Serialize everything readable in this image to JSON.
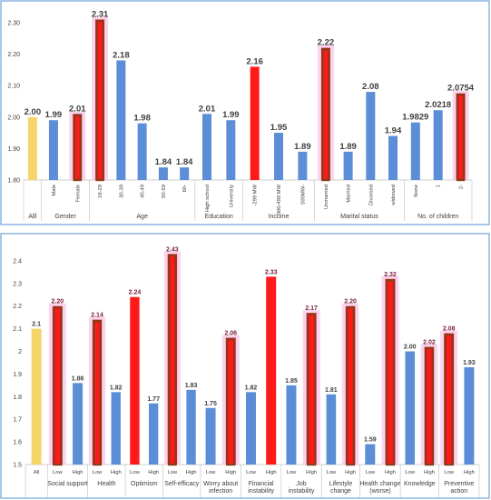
{
  "colors": {
    "avg": "#f5d46a",
    "low": "#5b8ed6",
    "high": "#ff1a1a",
    "highlight_outline": "#8b3a1a",
    "highlight_glow": "#f6c7ea",
    "frame": "#6fa3d8"
  },
  "chart_data": [
    {
      "type": "bar",
      "ylim": [
        1.8,
        2.32
      ],
      "yticks": [
        "1.80",
        "1.90",
        "2.00",
        "2.10",
        "2.20",
        "2.30"
      ],
      "groups": [
        {
          "label": "Alll",
          "bars": [
            {
              "category": "",
              "value": 2.0,
              "label": "2.00",
              "color": "avg"
            }
          ]
        },
        {
          "label": "Gender",
          "bars": [
            {
              "category": "Male",
              "value": 1.99,
              "label": "1.99",
              "color": "low"
            },
            {
              "category": "Female",
              "value": 2.01,
              "label": "2.01",
              "color": "high",
              "highlight": true
            }
          ]
        },
        {
          "label": "Age",
          "bars": [
            {
              "category": "18-29",
              "value": 2.31,
              "label": "2.31",
              "color": "high",
              "highlight": true
            },
            {
              "category": "30-39",
              "value": 2.18,
              "label": "2.18",
              "color": "low"
            },
            {
              "category": "40-49",
              "value": 1.98,
              "label": "1.98",
              "color": "low"
            },
            {
              "category": "50-59",
              "value": 1.84,
              "label": "1.84",
              "color": "low"
            },
            {
              "category": "60-",
              "value": 1.84,
              "label": "1.84",
              "color": "low"
            }
          ]
        },
        {
          "label": "Education",
          "bars": [
            {
              "category": "High school",
              "value": 2.01,
              "label": "2.01",
              "color": "low"
            },
            {
              "category": "University",
              "value": 1.99,
              "label": "1.99",
              "color": "low"
            }
          ]
        },
        {
          "label": "Income",
          "bars": [
            {
              "category": "-299 MW",
              "value": 2.16,
              "label": "2.16",
              "color": "high"
            },
            {
              "category": "300-499 MW",
              "value": 1.95,
              "label": "1.95",
              "color": "low"
            },
            {
              "category": "500MW-",
              "value": 1.89,
              "label": "1.89",
              "color": "low"
            }
          ]
        },
        {
          "label": "Marital status",
          "bars": [
            {
              "category": "Unmarried",
              "value": 2.22,
              "label": "2.22",
              "color": "high",
              "highlight": true
            },
            {
              "category": "Married",
              "value": 1.89,
              "label": "1.89",
              "color": "low"
            },
            {
              "category": "Divorsed",
              "value": 2.08,
              "label": "2.08",
              "color": "low"
            },
            {
              "category": "widowed",
              "value": 1.94,
              "label": "1.94",
              "color": "low"
            }
          ]
        },
        {
          "label": "No. of children",
          "bars": [
            {
              "category": "None",
              "value": 1.9829,
              "label": "1.9829",
              "color": "low"
            },
            {
              "category": "1",
              "value": 2.0218,
              "label": "2.0218",
              "color": "low"
            },
            {
              "category": "2-",
              "value": 2.0754,
              "label": "2.0754",
              "color": "high",
              "highlight": true
            }
          ]
        }
      ]
    },
    {
      "type": "bar",
      "ylim": [
        1.5,
        2.5
      ],
      "yticks": [
        "1.5",
        "1.6",
        "1.7",
        "1.8",
        "1.9",
        "2",
        "2.1",
        "2.2",
        "2.3",
        "2.4"
      ],
      "groups": [
        {
          "label": "",
          "bars": [
            {
              "category": "All",
              "value": 2.1,
              "label": "2.1",
              "color": "avg"
            }
          ]
        },
        {
          "label": "Social support",
          "bars": [
            {
              "category": "Low",
              "value": 2.2,
              "label": "2.20",
              "color": "high",
              "highlight": true
            },
            {
              "category": "High",
              "value": 1.86,
              "label": "1.86",
              "color": "low"
            }
          ]
        },
        {
          "label": "Health",
          "bars": [
            {
              "category": "Low",
              "value": 2.14,
              "label": "2.14",
              "color": "high",
              "highlight": true
            },
            {
              "category": "High",
              "value": 1.82,
              "label": "1.82",
              "color": "low"
            }
          ]
        },
        {
          "label": "Optimism",
          "bars": [
            {
              "category": "Low",
              "value": 2.24,
              "label": "2.24",
              "color": "high"
            },
            {
              "category": "High",
              "value": 1.77,
              "label": "1.77",
              "color": "low"
            }
          ]
        },
        {
          "label": "Self-efficacy",
          "bars": [
            {
              "category": "Low",
              "value": 2.43,
              "label": "2.43",
              "color": "high",
              "highlight": true
            },
            {
              "category": "High",
              "value": 1.83,
              "label": "1.83",
              "color": "low"
            }
          ]
        },
        {
          "label": "Worry about infection",
          "bars": [
            {
              "category": "Low",
              "value": 1.75,
              "label": "1.75",
              "color": "low"
            },
            {
              "category": "High",
              "value": 2.06,
              "label": "2.06",
              "color": "high",
              "highlight": true
            }
          ]
        },
        {
          "label": "Financial instability",
          "bars": [
            {
              "category": "Low",
              "value": 1.82,
              "label": "1.82",
              "color": "low"
            },
            {
              "category": "High",
              "value": 2.33,
              "label": "2.33",
              "color": "high"
            }
          ]
        },
        {
          "label": "Job instability",
          "bars": [
            {
              "category": "Low",
              "value": 1.85,
              "label": "1.85",
              "color": "low"
            },
            {
              "category": "High",
              "value": 2.17,
              "label": "2.17",
              "color": "high",
              "highlight": true
            }
          ]
        },
        {
          "label": "Lifestyle change",
          "bars": [
            {
              "category": "Low",
              "value": 1.81,
              "label": "1.81",
              "color": "low"
            },
            {
              "category": "High",
              "value": 2.2,
              "label": "2.20",
              "color": "high",
              "highlight": true
            }
          ]
        },
        {
          "label": "Health change (worse)",
          "bars": [
            {
              "category": "Low",
              "value": 1.59,
              "label": "1.59",
              "color": "low"
            },
            {
              "category": "High",
              "value": 2.32,
              "label": "2.32",
              "color": "high",
              "highlight": true
            }
          ]
        },
        {
          "label": "Knowledge",
          "bars": [
            {
              "category": "Low",
              "value": 2.0,
              "label": "2.00",
              "color": "low"
            },
            {
              "category": "High",
              "value": 2.02,
              "label": "2.02",
              "color": "high",
              "highlight": true
            }
          ]
        },
        {
          "label": "Preventive action",
          "bars": [
            {
              "category": "Low",
              "value": 2.08,
              "label": "2.08",
              "color": "high",
              "highlight": true
            },
            {
              "category": "High",
              "value": 1.93,
              "label": "1.93",
              "color": "low"
            }
          ]
        }
      ]
    }
  ]
}
